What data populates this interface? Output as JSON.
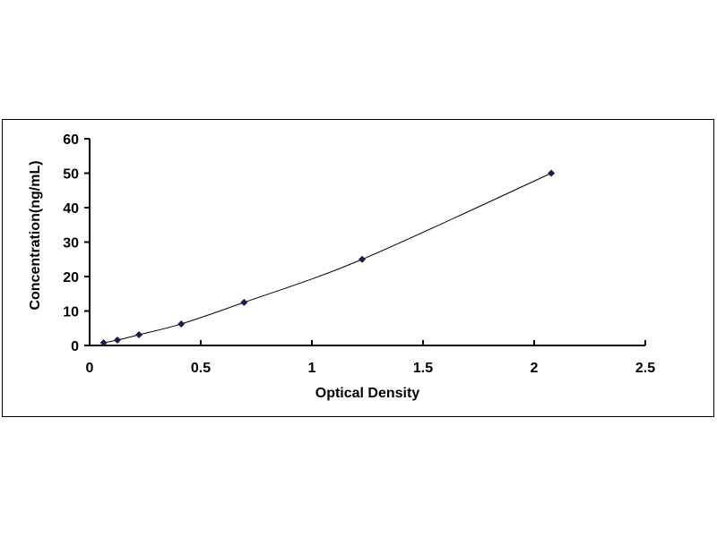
{
  "chart_data": {
    "type": "scatter",
    "title": "",
    "xlabel": "Optical Density",
    "ylabel": "Concentration(ng/mL)",
    "xlim": [
      0,
      2.5
    ],
    "ylim": [
      0,
      60
    ],
    "xticks": [
      "0",
      "0.5",
      "1",
      "1.5",
      "2",
      "2.5"
    ],
    "yticks": [
      "0",
      "10",
      "20",
      "30",
      "40",
      "50",
      "60"
    ],
    "grid": false,
    "trendline": "smooth curve",
    "marker_color": "#1a1a4e",
    "x": [
      0.063,
      0.125,
      0.222,
      0.412,
      0.695,
      1.226,
      2.077
    ],
    "y": [
      0.78,
      1.56,
      3.125,
      6.25,
      12.5,
      25,
      50
    ]
  }
}
